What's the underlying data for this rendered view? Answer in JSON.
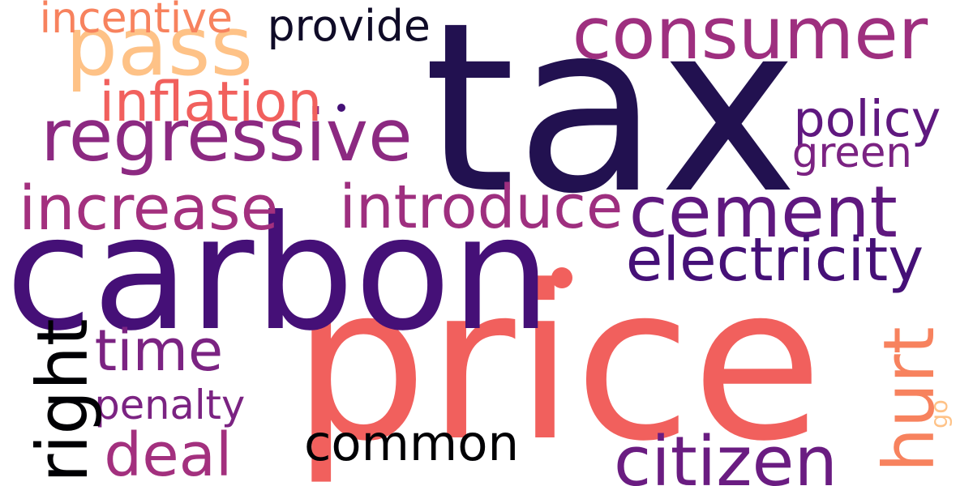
{
  "words": [
    {
      "id": "tax",
      "text": "tax",
      "color": "#221150"
    },
    {
      "id": "price",
      "text": "price",
      "color": "#f1605d"
    },
    {
      "id": "carbon",
      "text": "carbon",
      "color": "#451077"
    },
    {
      "id": "regressive",
      "text": "regressive",
      "color": "#8c2981"
    },
    {
      "id": "consumer",
      "text": "consumer",
      "color": "#9e2f7f"
    },
    {
      "id": "pass",
      "text": "pass",
      "color": "#fec287"
    },
    {
      "id": "cement",
      "text": "cement",
      "color": "#5f187f"
    },
    {
      "id": "electricity",
      "text": "electricity",
      "color": "#451077"
    },
    {
      "id": "introduce",
      "text": "introduce",
      "color": "#9e2f7f"
    },
    {
      "id": "increase",
      "text": "increase",
      "color": "#a3307e"
    },
    {
      "id": "policy",
      "text": "policy",
      "color": "#5f187f"
    },
    {
      "id": "provide",
      "text": "provide",
      "color": "#0f0b27"
    },
    {
      "id": "inflation",
      "text": "inflation",
      "color": "#f1605d"
    },
    {
      "id": "incentive",
      "text": "incentive",
      "color": "#f7825e"
    },
    {
      "id": "common",
      "text": "common",
      "color": "#000004"
    },
    {
      "id": "citizen",
      "text": "citizen",
      "color": "#6a1c81"
    },
    {
      "id": "time",
      "text": "time",
      "color": "#7b2382"
    },
    {
      "id": "deal",
      "text": "deal",
      "color": "#a3307e"
    },
    {
      "id": "penalty",
      "text": "penalty",
      "color": "#7b2382"
    },
    {
      "id": "right",
      "text": "right",
      "color": "#000004"
    },
    {
      "id": "hurt",
      "text": "hurt",
      "color": "#f7825e"
    },
    {
      "id": "go",
      "text": "go",
      "color": "#fec287"
    },
    {
      "id": "green",
      "text": "green",
      "color": "#7b2382"
    }
  ],
  "dots": [
    {
      "id": "carbon-dot",
      "color": "#f1605d"
    },
    {
      "id": "inflation-dot",
      "color": "#451077"
    }
  ]
}
